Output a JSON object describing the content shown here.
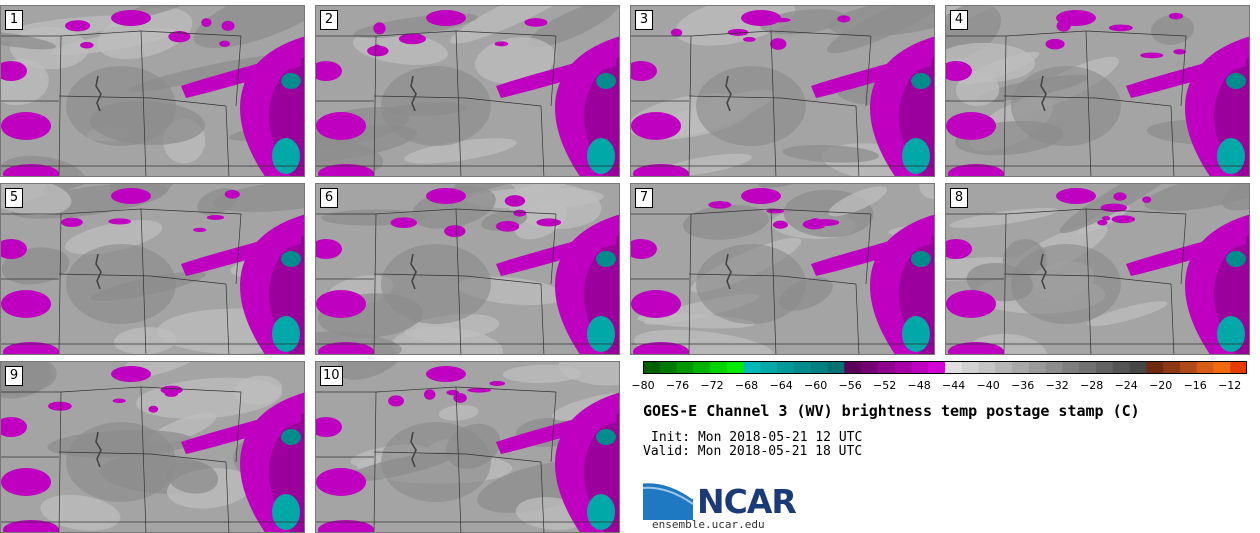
{
  "chart_data": {
    "type": "heatmap",
    "title": "GOES-E Channel 3 (WV) brightness temp postage stamp (C)",
    "init": "Init: Mon 2018-05-21 12 UTC",
    "valid": "Valid: Mon 2018-05-21 18 UTC",
    "units": "C",
    "panels": [
      "1",
      "2",
      "3",
      "4",
      "5",
      "6",
      "7",
      "8",
      "9",
      "10"
    ],
    "colorbar": {
      "range": [
        -80,
        -10
      ],
      "ticks": [
        -80,
        -76,
        -72,
        -68,
        -64,
        -60,
        -56,
        -52,
        -48,
        -44,
        -40,
        -36,
        -32,
        -28,
        -24,
        -20,
        -16,
        -12
      ],
      "colors": [
        "#005f00",
        "#007a00",
        "#009600",
        "#00b400",
        "#00d400",
        "#00ec00",
        "#00b8b8",
        "#00a8a8",
        "#009898",
        "#008c8c",
        "#008080",
        "#007272",
        "#5a005a",
        "#740074",
        "#8e008e",
        "#a800a8",
        "#c000c0",
        "#d800d8",
        "#e0e0e0",
        "#d2d2d2",
        "#c4c4c4",
        "#b6b6b6",
        "#a8a8a8",
        "#9a9a9a",
        "#8c8c8c",
        "#7e7e7e",
        "#707070",
        "#626262",
        "#545454",
        "#464646",
        "#6e2a10",
        "#8c3814",
        "#b04a18",
        "#d65c18",
        "#f06a10",
        "#e63c00"
      ]
    }
  },
  "branding": {
    "logo_text": "NCAR",
    "url": "ensemble.ucar.edu"
  }
}
